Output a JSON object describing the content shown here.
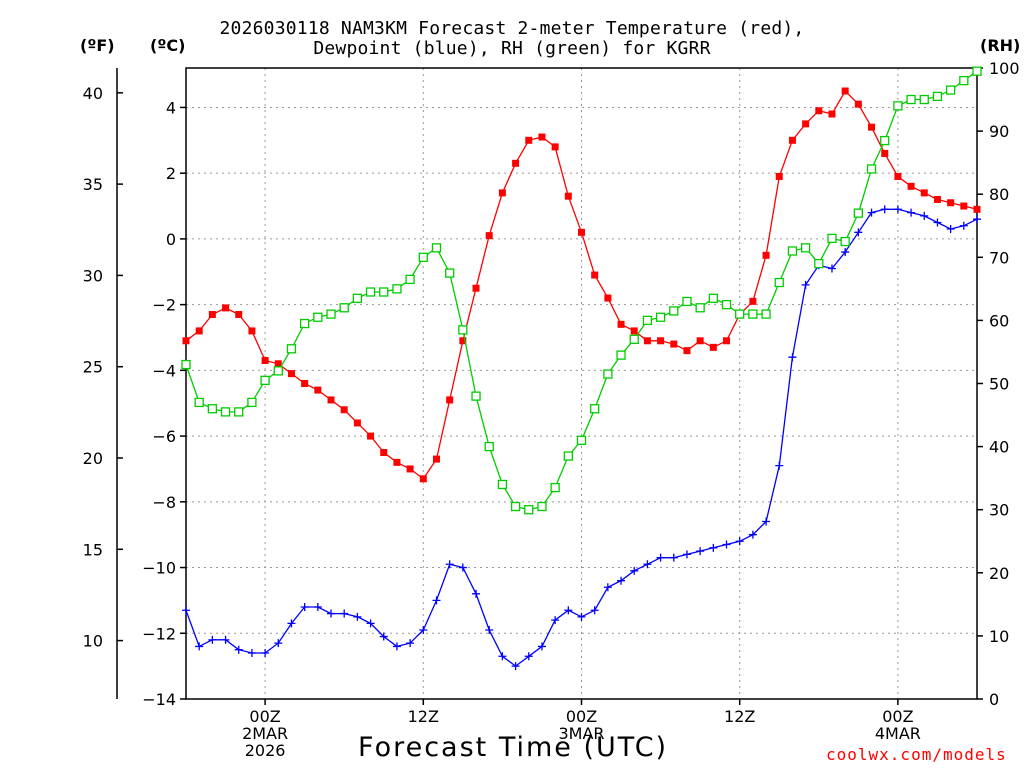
{
  "title": {
    "line1": "2026030118 NAM3KM Forecast 2-meter Temperature (red),",
    "line2": "Dewpoint (blue), RH (green) for KGRR"
  },
  "units": {
    "fahrenheit": "(ºF)",
    "celsius": "(ºC)",
    "rh": "(RH)"
  },
  "credit": "coolwx.com/models",
  "colors": {
    "temperature": "#ff0000",
    "dewpoint": "#0000ff",
    "rh": "#00cc00",
    "grid": "#999999",
    "axis": "#000000"
  },
  "chart_data": {
    "type": "line",
    "xlabel": "Forecast Time (UTC)",
    "x_hours_range": [
      0,
      60
    ],
    "x_ticks": [
      {
        "hour": 6,
        "lines": [
          "00Z",
          "2MAR",
          "2026"
        ]
      },
      {
        "hour": 18,
        "lines": [
          "12Z"
        ]
      },
      {
        "hour": 30,
        "lines": [
          "00Z",
          "3MAR"
        ]
      },
      {
        "hour": 42,
        "lines": [
          "12Z"
        ]
      },
      {
        "hour": 54,
        "lines": [
          "00Z",
          "4MAR"
        ]
      }
    ],
    "left_axis_celsius": {
      "range": [
        -14,
        5.2
      ],
      "ticks": [
        4,
        2,
        0,
        -2,
        -4,
        -6,
        -8,
        -10,
        -12,
        -14
      ],
      "tick_labels": [
        "4",
        "2",
        "0",
        "−2",
        "−4",
        "−6",
        "−8",
        "−10",
        "−12",
        "−14"
      ]
    },
    "left_axis_fahrenheit": {
      "ticks": [
        40,
        35,
        30,
        25,
        20,
        15,
        10
      ]
    },
    "right_axis_rh": {
      "range": [
        0,
        100
      ],
      "ticks": [
        100,
        90,
        80,
        70,
        60,
        50,
        40,
        30,
        20,
        10,
        0
      ]
    },
    "series": [
      {
        "name": "2-meter Temperature",
        "unit": "°C",
        "axis": "celsius",
        "marker": "filled-square",
        "color": "#ff0000",
        "x": [
          0,
          1,
          2,
          3,
          4,
          5,
          6,
          7,
          8,
          9,
          10,
          11,
          12,
          13,
          14,
          15,
          16,
          17,
          18,
          19,
          20,
          21,
          22,
          23,
          24,
          25,
          26,
          27,
          28,
          29,
          30,
          31,
          32,
          33,
          34,
          35,
          36,
          37,
          38,
          39,
          40,
          41,
          42,
          43,
          44,
          45,
          46,
          47,
          48,
          49,
          50,
          51,
          52,
          53,
          54,
          55,
          56,
          57,
          58,
          59,
          60
        ],
        "values": [
          -3.1,
          -2.8,
          -2.3,
          -2.1,
          -2.3,
          -2.8,
          -3.7,
          -3.8,
          -4.1,
          -4.4,
          -4.6,
          -4.9,
          -5.2,
          -5.6,
          -6.0,
          -6.5,
          -6.8,
          -7.0,
          -7.3,
          -6.7,
          -4.9,
          -3.1,
          -1.5,
          0.1,
          1.4,
          2.3,
          3.0,
          3.1,
          2.8,
          1.3,
          0.2,
          -1.1,
          -1.8,
          -2.6,
          -2.8,
          -3.1,
          -3.1,
          -3.2,
          -3.4,
          -3.1,
          -3.3,
          -3.1,
          -2.3,
          -1.9,
          -0.5,
          1.9,
          3.0,
          3.5,
          3.9,
          3.8,
          4.5,
          4.1,
          3.4,
          2.6,
          1.9,
          1.6,
          1.4,
          1.2,
          1.1,
          1.0,
          0.9
        ]
      },
      {
        "name": "Dewpoint",
        "unit": "°C",
        "axis": "celsius",
        "marker": "plus",
        "color": "#0000ff",
        "x": [
          0,
          1,
          2,
          3,
          4,
          5,
          6,
          7,
          8,
          9,
          10,
          11,
          12,
          13,
          14,
          15,
          16,
          17,
          18,
          19,
          20,
          21,
          22,
          23,
          24,
          25,
          26,
          27,
          28,
          29,
          30,
          31,
          32,
          33,
          34,
          35,
          36,
          37,
          38,
          39,
          40,
          41,
          42,
          43,
          44,
          45,
          46,
          47,
          48,
          49,
          50,
          51,
          52,
          53,
          54,
          55,
          56,
          57,
          58,
          59,
          60
        ],
        "values": [
          -11.3,
          -12.4,
          -12.2,
          -12.2,
          -12.5,
          -12.6,
          -12.6,
          -12.3,
          -11.7,
          -11.2,
          -11.2,
          -11.4,
          -11.4,
          -11.5,
          -11.7,
          -12.1,
          -12.4,
          -12.3,
          -11.9,
          -11.0,
          -9.9,
          -10.0,
          -10.8,
          -11.9,
          -12.7,
          -13.0,
          -12.7,
          -12.4,
          -11.6,
          -11.3,
          -11.5,
          -11.3,
          -10.6,
          -10.4,
          -10.1,
          -9.9,
          -9.7,
          -9.7,
          -9.6,
          -9.5,
          -9.4,
          -9.3,
          -9.2,
          -9.0,
          -8.6,
          -6.9,
          -3.6,
          -1.4,
          -0.8,
          -0.9,
          -0.4,
          0.2,
          0.8,
          0.9,
          0.9,
          0.8,
          0.7,
          0.5,
          0.3,
          0.4,
          0.6
        ]
      },
      {
        "name": "RH",
        "unit": "%",
        "axis": "rh",
        "marker": "open-square",
        "color": "#00cc00",
        "x": [
          0,
          1,
          2,
          3,
          4,
          5,
          6,
          7,
          8,
          9,
          10,
          11,
          12,
          13,
          14,
          15,
          16,
          17,
          18,
          19,
          20,
          21,
          22,
          23,
          24,
          25,
          26,
          27,
          28,
          29,
          30,
          31,
          32,
          33,
          34,
          35,
          36,
          37,
          38,
          39,
          40,
          41,
          42,
          43,
          44,
          45,
          46,
          47,
          48,
          49,
          50,
          51,
          52,
          53,
          54,
          55,
          56,
          57,
          58,
          59,
          60
        ],
        "values": [
          53,
          47,
          46,
          45.5,
          45.5,
          47,
          50.5,
          52,
          55.5,
          59.5,
          60.5,
          61,
          62,
          63.5,
          64.5,
          64.5,
          65,
          66.5,
          70,
          71.5,
          67.5,
          58.5,
          48,
          40,
          34,
          30.5,
          30,
          30.5,
          33.5,
          38.5,
          41,
          46,
          51.5,
          54.5,
          57,
          60,
          60.5,
          61.5,
          63,
          62,
          63.5,
          62.5,
          61,
          61,
          61,
          66,
          71,
          71.5,
          69,
          73,
          72.5,
          77,
          84,
          88.5,
          94,
          95,
          95,
          95.5,
          96.5,
          98,
          99.5
        ]
      }
    ]
  }
}
